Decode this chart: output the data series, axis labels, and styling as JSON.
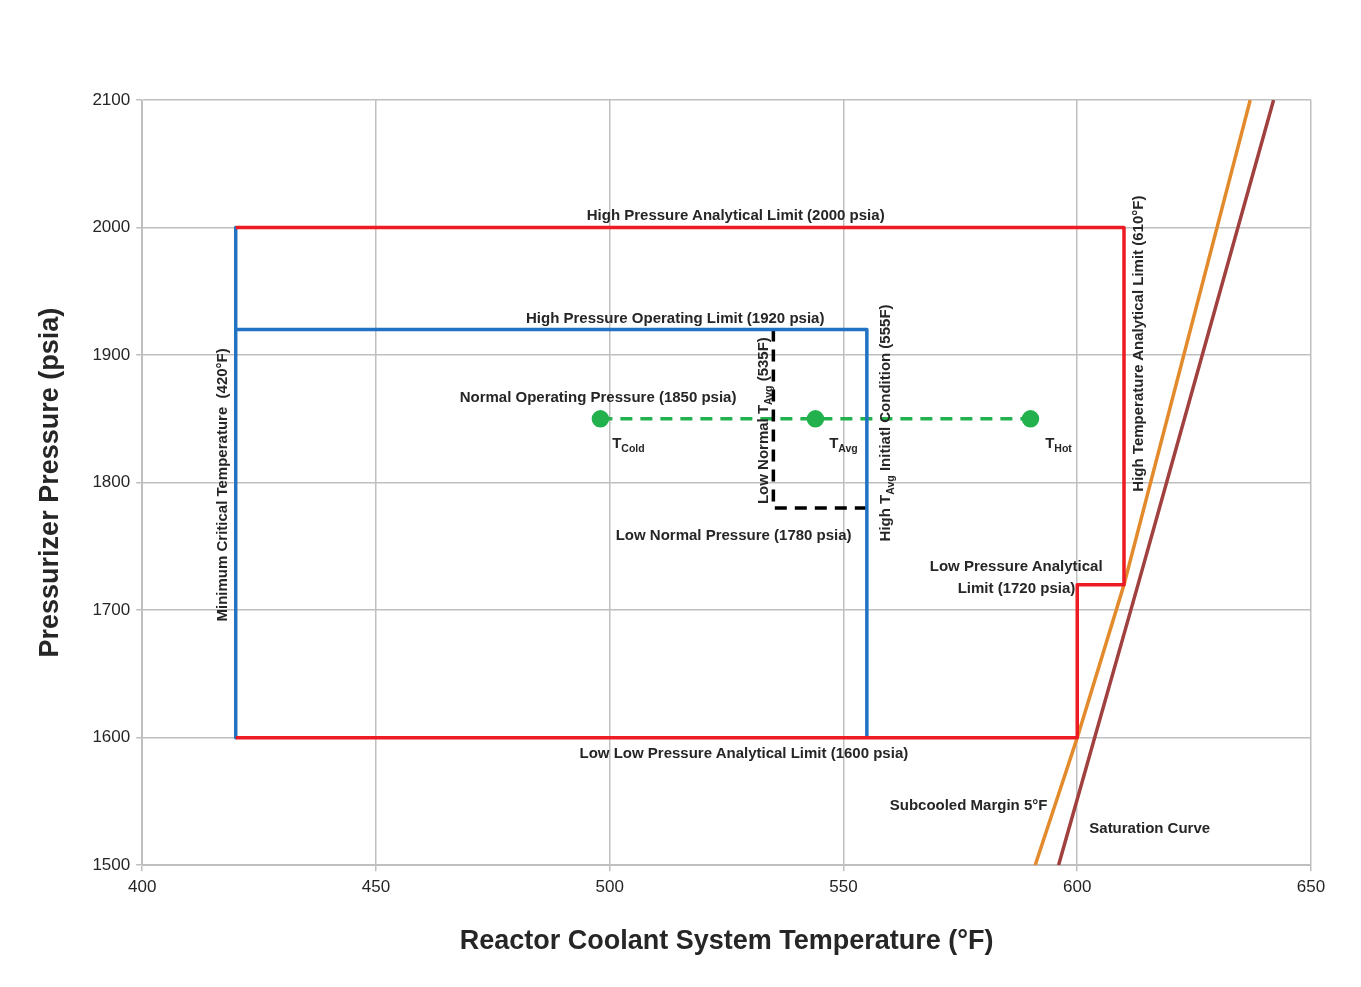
{
  "chart_data": {
    "type": "line",
    "xlabel": "Reactor Coolant System Temperature (°F)",
    "ylabel": "Pressurizer Pressure (psia)",
    "xlim": [
      400,
      650
    ],
    "xticks": [
      400,
      450,
      500,
      550,
      600,
      650
    ],
    "ylim": [
      1500,
      2100
    ],
    "yticks": [
      1500,
      1600,
      1700,
      1800,
      1900,
      2000,
      2100
    ],
    "grid": true,
    "legend": false,
    "series": [
      {
        "color": "#ed1c24",
        "line_style": "solid",
        "marker": "none",
        "x": [
          420,
          610,
          610,
          600,
          600,
          420
        ],
        "values": [
          2000,
          2000,
          1720,
          1720,
          1600,
          1600
        ]
      },
      {
        "color": "#2272c3",
        "line_style": "solid",
        "marker": "none",
        "x": [
          555,
          555,
          420,
          420,
          420
        ],
        "values": [
          1600,
          1920,
          1920,
          2000,
          1600
        ]
      },
      {
        "color": "#000000",
        "line_style": "dashed",
        "marker": "none",
        "x": [
          535,
          535,
          555
        ],
        "values": [
          1920,
          1780,
          1780
        ]
      },
      {
        "color": "#22b14c",
        "line_style": "dashed",
        "marker": "circle",
        "x": [
          498,
          544,
          590
        ],
        "values": [
          1850,
          1850,
          1850
        ]
      },
      {
        "color": "#e38b2c",
        "line_style": "solid",
        "marker": "none",
        "x": [
          591,
          600,
          610,
          637
        ],
        "values": [
          1500,
          1600,
          1720,
          2100
        ]
      },
      {
        "color": "#a0413f",
        "line_style": "solid",
        "marker": "none",
        "x": [
          596,
          613,
          642
        ],
        "values": [
          1500,
          1720,
          2100
        ]
      }
    ],
    "annotations": [
      "High Pressure Analytical Limit (2000 psia)",
      "High Pressure Operating Limit (1920 psia)",
      "Normal Operating Pressure (1850 psia)",
      "Low Normal Pressure (1780 psia)",
      "Low Low Pressure Analytical Limit (1600 psia)",
      "Low Pressure Analytical\nLimit (1720 psia)",
      "Subcooled Margin 5°F",
      "Saturation Curve",
      "Minimum Critical Temperature  (420°F)",
      "High Temperature Analytical Limit (610°F)",
      "Low Normal T$_{Avg}$ (535F)",
      "High T$_{Avg}$ Initiatl Condition (555F)",
      {
        "text": "T$_{Cold}$",
        "x": 498,
        "y": 1850
      },
      {
        "text": "T$_{Avg}$",
        "x": 544,
        "y": 1850
      },
      {
        "text": "T$_{Hot}$",
        "x": 590,
        "y": 1850
      }
    ]
  }
}
